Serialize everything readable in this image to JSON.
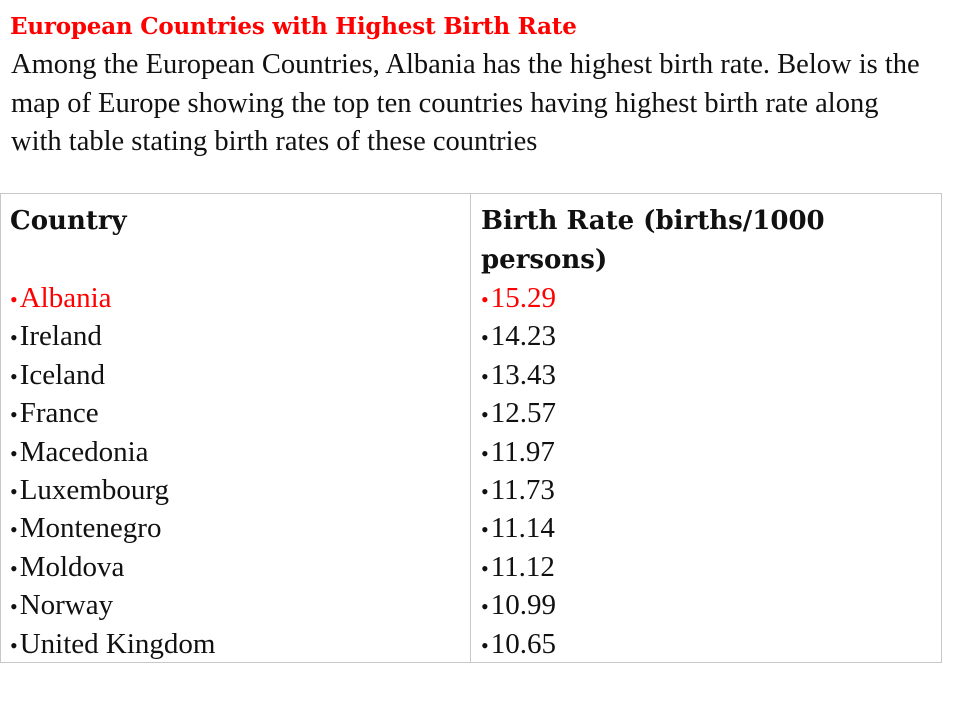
{
  "title": "European Countries with Highest Birth Rate",
  "intro": " Among the European Countries, Albania has the highest birth rate. Below is the map of Europe showing the top ten countries having highest birth rate along with table stating birth rates of these countries",
  "highlight_color": "#ff0000",
  "table": {
    "headers": {
      "country": "Country",
      "rate": "Birth Rate (births/1000 persons)"
    },
    "bullet": "•",
    "rows": [
      {
        "country": "Albania",
        "rate": "15.29",
        "highlight": true
      },
      {
        "country": "Ireland",
        "rate": "14.23",
        "highlight": false
      },
      {
        "country": "Iceland",
        "rate": "13.43",
        "highlight": false
      },
      {
        "country": "France",
        "rate": "12.57",
        "highlight": false
      },
      {
        "country": "Macedonia",
        "rate": "11.97",
        "highlight": false
      },
      {
        "country": "Luxembourg",
        "rate": "11.73",
        "highlight": false
      },
      {
        "country": "Montenegro",
        "rate": "11.14",
        "highlight": false
      },
      {
        "country": "Moldova",
        "rate": "11.12",
        "highlight": false
      },
      {
        "country": "Norway",
        "rate": "10.99",
        "highlight": false
      },
      {
        "country": "United Kingdom",
        "rate": "10.65",
        "highlight": false
      }
    ]
  }
}
